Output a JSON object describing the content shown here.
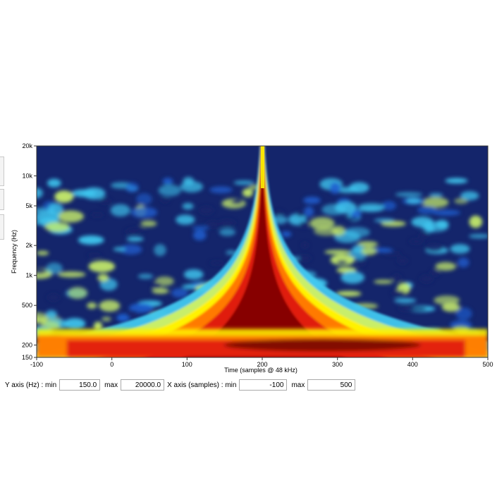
{
  "chart_data": {
    "type": "heatmap",
    "title": "",
    "xlabel": "Time (samples @ 48 kHz)",
    "ylabel": "Frequency (Hz)",
    "xlim": [
      -100,
      500
    ],
    "ylim": [
      150,
      20000
    ],
    "y_scale": "log",
    "x_ticks": [
      -100,
      0,
      100,
      200,
      300,
      400,
      500
    ],
    "x_tick_labels": [
      "-100",
      "0",
      "100",
      "200",
      "300",
      "400",
      "500"
    ],
    "y_ticks": [
      150,
      200,
      500,
      1000,
      2000,
      5000,
      10000,
      20000
    ],
    "y_tick_labels": [
      "150",
      "200",
      "500",
      "1k",
      "2k",
      "5k",
      "10k",
      "20k"
    ],
    "colormap": [
      "#14256b",
      "#1f5fd0",
      "#40c8f0",
      "#c8ee6a",
      "#fff200",
      "#ff7a00",
      "#e01a10",
      "#6a0000"
    ],
    "features": {
      "impulse_time_samples": 200,
      "low_frequency_energy_hz": 200
    }
  },
  "controls": {
    "y_min_label": "Y axis (Hz) : min",
    "y_min_value": "150.0",
    "y_max_label": "max",
    "y_max_value": "20000.0",
    "x_min_label": "X axis (samples) : min",
    "x_min_value": "-100",
    "x_max_label": "max",
    "x_max_value": "500"
  }
}
